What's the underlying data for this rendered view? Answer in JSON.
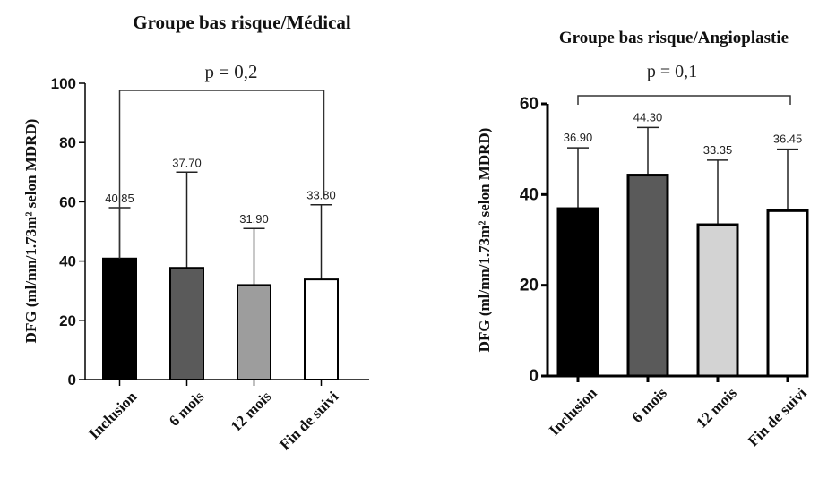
{
  "chart_data": [
    {
      "type": "bar",
      "title": "Groupe bas risque/Médical",
      "ylabel": "DFG (ml/mn/1.73m² selon MDRD)",
      "categories": [
        "Inclusion",
        "6 mois",
        "12 mois",
        "Fin de suivi"
      ],
      "values": [
        40.85,
        37.7,
        31.9,
        33.8
      ],
      "error_upper": [
        58,
        70,
        51,
        59
      ],
      "data_labels": [
        "40.85",
        "37.70",
        "31.90",
        "33.80"
      ],
      "bar_colors": [
        "#000000",
        "#5a5a5a",
        "#9d9d9d",
        "#ffffff"
      ],
      "ylim": [
        0,
        100
      ],
      "yticks": [
        0,
        20,
        40,
        60,
        80,
        100
      ],
      "ytick_labels": [
        "0",
        "20",
        "40",
        "60",
        "80",
        "100"
      ],
      "annotation": "p = 0,2"
    },
    {
      "type": "bar",
      "title": "Groupe bas risque/Angioplastie",
      "ylabel": "DFG (ml/mn/1.73m² selon MDRD)",
      "categories": [
        "Inclusion",
        "6 mois",
        "12 mois",
        "Fin de suivi"
      ],
      "values": [
        36.9,
        44.3,
        33.35,
        36.45
      ],
      "error_upper": [
        50.3,
        54.8,
        47.6,
        50
      ],
      "data_labels": [
        "36.90",
        "44.30",
        "33.35",
        "36.45"
      ],
      "bar_colors": [
        "#000000",
        "#5a5a5a",
        "#d3d3d3",
        "#ffffff"
      ],
      "ylim": [
        0,
        60
      ],
      "yticks": [
        0,
        20,
        40,
        60
      ],
      "ytick_labels": [
        "0",
        "20",
        "40",
        "60"
      ],
      "annotation": "p = 0,1"
    }
  ]
}
